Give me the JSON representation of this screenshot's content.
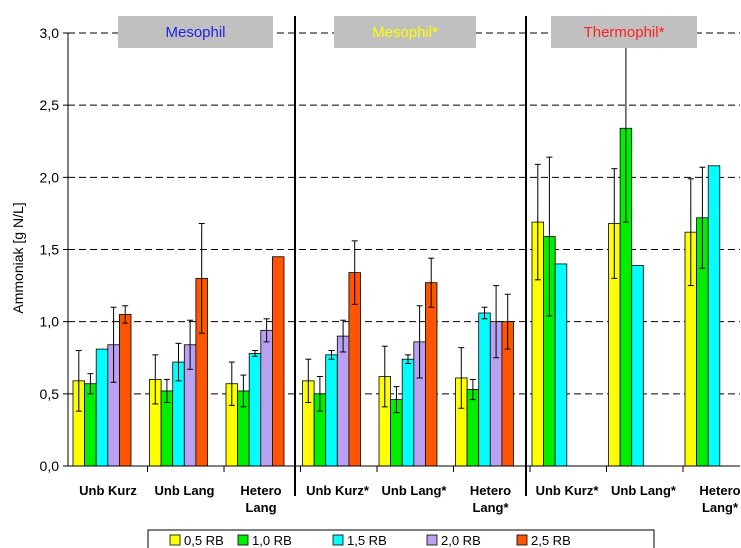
{
  "chart_data": {
    "type": "bar",
    "title": "",
    "ylabel": "Ammoniak [g N/L]",
    "ylim": [
      0,
      3
    ],
    "yticks": [
      "0,0",
      "0,5",
      "1,0",
      "1,5",
      "2,0",
      "2,5",
      "3,0"
    ],
    "grid": "dashed horizontal",
    "panels": [
      {
        "label": "Mesophil",
        "color": "#1f1fdd"
      },
      {
        "label": "Mesophil*",
        "color": "#ffff00"
      },
      {
        "label": "Thermophil*",
        "color": "#ff2020"
      }
    ],
    "categories": [
      [
        "Unb Kurz"
      ],
      [
        "Unb Lang"
      ],
      [
        "Hetero",
        "Lang"
      ],
      [
        "Unb Kurz*"
      ],
      [
        "Unb Lang*"
      ],
      [
        "Hetero",
        "Lang*"
      ],
      [
        "Unb Kurz*"
      ],
      [
        "Unb Lang*"
      ],
      [
        "Hetero",
        "Lang*"
      ]
    ],
    "series": [
      {
        "name": "0,5 RB",
        "color": "#ffff00",
        "values": [
          0.59,
          0.6,
          0.57,
          0.59,
          0.62,
          0.61,
          1.69,
          1.68,
          1.62
        ],
        "errors": [
          0.21,
          0.17,
          0.15,
          0.15,
          0.21,
          0.21,
          0.4,
          0.38,
          0.37
        ]
      },
      {
        "name": "1,0 RB",
        "color": "#00ee00",
        "values": [
          0.57,
          0.52,
          0.52,
          0.5,
          0.46,
          0.53,
          1.59,
          2.34,
          1.72
        ],
        "errors": [
          0.07,
          0.08,
          0.11,
          0.12,
          0.09,
          0.07,
          0.55,
          0.65,
          0.35
        ]
      },
      {
        "name": "1,5 RB",
        "color": "#00ffff",
        "values": [
          0.81,
          0.72,
          0.78,
          0.77,
          0.74,
          1.06,
          1.4,
          1.39,
          2.08
        ],
        "errors": [
          0,
          0.13,
          0.02,
          0.03,
          0.03,
          0.04,
          0,
          0,
          0
        ]
      },
      {
        "name": "2,0 RB",
        "color": "#b9a0f0",
        "values": [
          0.84,
          0.84,
          0.94,
          0.9,
          0.86,
          1.0,
          null,
          null,
          null
        ],
        "errors": [
          0.26,
          0.17,
          0.08,
          0.11,
          0.25,
          0.25,
          0,
          0,
          0
        ]
      },
      {
        "name": "2,5 RB",
        "color": "#ff5500",
        "values": [
          1.05,
          1.3,
          1.45,
          1.34,
          1.27,
          1.0,
          null,
          null,
          null
        ],
        "errors": [
          0.06,
          0.38,
          0,
          0.22,
          0.17,
          0.19,
          0,
          0,
          0
        ]
      }
    ]
  }
}
